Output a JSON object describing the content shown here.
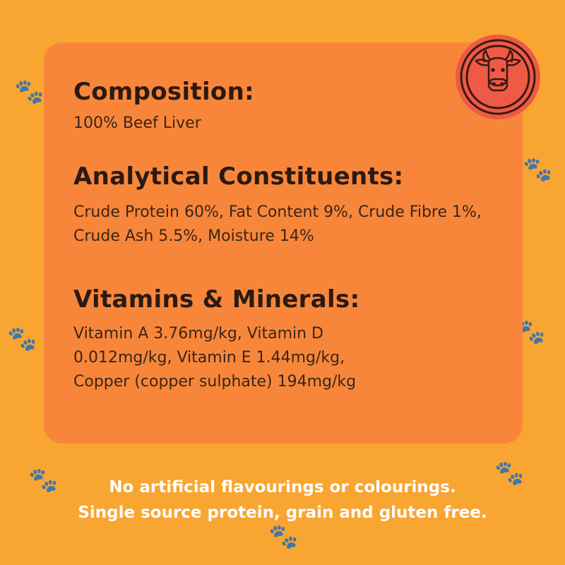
{
  "composition": {
    "heading": "Composition:",
    "text": "100% Beef Liver"
  },
  "analytical": {
    "heading": "Analytical Constituents:",
    "text": "Crude Protein 60%, Fat Content 9%, Crude Fibre 1%, Crude Ash 5.5%, Moisture 14%"
  },
  "vitamins": {
    "heading": "Vitamins & Minerals:",
    "text": "Vitamin A 3.76mg/kg, Vitamin D 0.012mg/kg, Vitamin E 1.44mg/kg, Copper (copper sulphate) 194mg/kg"
  },
  "footer": {
    "line1": "No artificial flavourings or colourings.",
    "line2": "Single source protein, grain and gluten free."
  },
  "badge": {
    "icon": "cow-icon"
  },
  "colors": {
    "background": "#f9a532",
    "card": "#f8863a",
    "badge": "#ee5a45"
  }
}
